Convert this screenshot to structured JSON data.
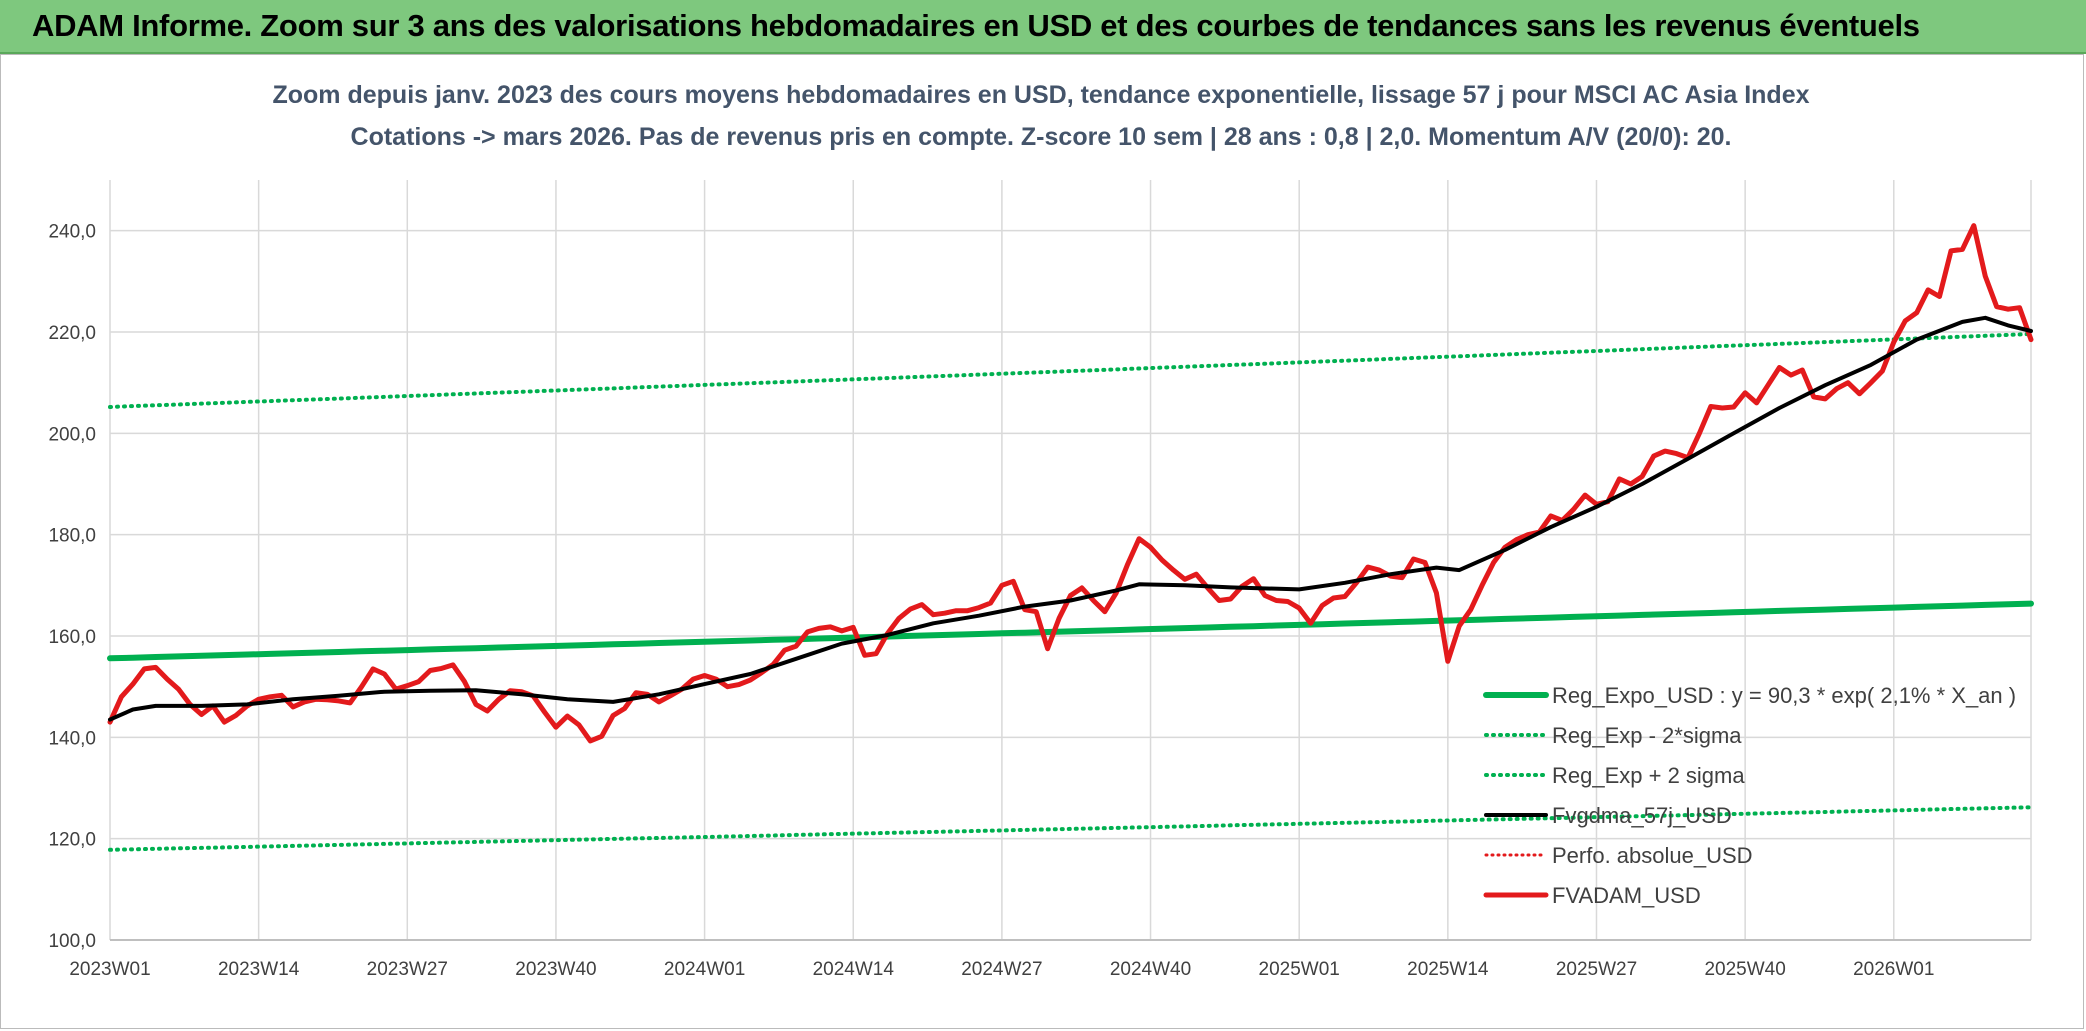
{
  "banner": {
    "title": "ADAM Informe. Zoom sur 3 ans des valorisations hebdomadaires en USD et des courbes de tendances sans les revenus éventuels"
  },
  "colors": {
    "banner_bg": "#7ec87e",
    "trend": "#00b050",
    "smooth": "#000000",
    "price": "#e31a1c",
    "grid": "#d9d9d9"
  },
  "chart_data": {
    "type": "line",
    "title": "Zoom depuis janv. 2023 des cours moyens hebdomadaires en USD, tendance exponentielle, lissage 57 j pour MSCI AC Asia Index",
    "subtitle": "Cotations -> mars 2026. Pas de revenus pris en compte. Z-score 10 sem | 28 ans : 0,8 | 2,0. Momentum A/V (20/0): 20.",
    "xlabel": "",
    "ylabel": "",
    "ylim": [
      100,
      250
    ],
    "y_ticks": [
      "100,0",
      "120,0",
      "140,0",
      "160,0",
      "180,0",
      "200,0",
      "220,0",
      "240,0"
    ],
    "x_ticks": [
      "2023W01",
      "2023W14",
      "2023W27",
      "2023W40",
      "2024W01",
      "2024W14",
      "2024W27",
      "2024W40",
      "2025W01",
      "2025W14",
      "2025W27",
      "2025W40",
      "2026W01"
    ],
    "x_range_weeks": [
      0,
      168
    ],
    "grid": true,
    "legend_position": "bottom-right",
    "series": [
      {
        "name": "Reg_Expo_USD : y = 90,3 * exp( 2,1% *  X_an )",
        "style": "thick-solid",
        "color": "#00b050",
        "start": 155.6,
        "end": 166.4
      },
      {
        "name": "Reg_Exp - 2*sigma",
        "style": "dotted",
        "color": "#00b050",
        "start": 117.8,
        "end": 126.2
      },
      {
        "name": "Reg_Exp + 2 sigma",
        "style": "dotted",
        "color": "#00b050",
        "start": 205.2,
        "end": 219.6
      },
      {
        "name": "Fvgdma_57j_USD",
        "style": "solid",
        "color": "#000000",
        "points": [
          [
            0,
            143.5
          ],
          [
            2,
            145.5
          ],
          [
            4,
            146.2
          ],
          [
            8,
            146.2
          ],
          [
            12,
            146.5
          ],
          [
            16,
            147.5
          ],
          [
            20,
            148.2
          ],
          [
            24,
            149.0
          ],
          [
            28,
            149.2
          ],
          [
            32,
            149.3
          ],
          [
            36,
            148.5
          ],
          [
            40,
            147.5
          ],
          [
            44,
            147.0
          ],
          [
            48,
            148.5
          ],
          [
            52,
            150.5
          ],
          [
            56,
            152.5
          ],
          [
            60,
            155.5
          ],
          [
            64,
            158.5
          ],
          [
            68,
            160.2
          ],
          [
            72,
            162.5
          ],
          [
            76,
            164.0
          ],
          [
            80,
            165.8
          ],
          [
            84,
            167.0
          ],
          [
            88,
            169.0
          ],
          [
            90,
            170.2
          ],
          [
            94,
            170.0
          ],
          [
            98,
            169.6
          ],
          [
            104,
            169.2
          ],
          [
            108,
            170.5
          ],
          [
            112,
            172.2
          ],
          [
            116,
            173.5
          ],
          [
            118,
            173.0
          ],
          [
            122,
            177.0
          ],
          [
            126,
            181.5
          ],
          [
            130,
            185.5
          ],
          [
            134,
            190.0
          ],
          [
            138,
            195.0
          ],
          [
            142,
            200.0
          ],
          [
            146,
            205.0
          ],
          [
            150,
            209.5
          ],
          [
            154,
            213.5
          ],
          [
            158,
            218.5
          ],
          [
            162,
            222.0
          ],
          [
            164,
            222.8
          ],
          [
            166,
            221.3
          ],
          [
            168,
            220.2
          ]
        ]
      },
      {
        "name": "Perfo. absolue_USD",
        "style": "dotted",
        "color": "#e31a1c",
        "points": []
      },
      {
        "name": "FVADAM_USD",
        "style": "thick-solid",
        "color": "#e31a1c",
        "points": [
          [
            0,
            143.0
          ],
          [
            1,
            148.0
          ],
          [
            2,
            150.5
          ],
          [
            3,
            153.5
          ],
          [
            4,
            153.8
          ],
          [
            5,
            151.5
          ],
          [
            6,
            149.5
          ],
          [
            7,
            146.5
          ],
          [
            8,
            144.5
          ],
          [
            9,
            146.2
          ],
          [
            10,
            143.0
          ],
          [
            11,
            144.3
          ],
          [
            12,
            146.2
          ],
          [
            13,
            147.5
          ],
          [
            14,
            148.0
          ],
          [
            15,
            148.3
          ],
          [
            16,
            146.0
          ],
          [
            17,
            147.0
          ],
          [
            18,
            147.5
          ],
          [
            19,
            147.4
          ],
          [
            20,
            147.2
          ],
          [
            21,
            146.8
          ],
          [
            22,
            150.0
          ],
          [
            23,
            153.5
          ],
          [
            24,
            152.5
          ],
          [
            25,
            149.5
          ],
          [
            26,
            150.2
          ],
          [
            27,
            151.0
          ],
          [
            28,
            153.2
          ],
          [
            29,
            153.6
          ],
          [
            30,
            154.3
          ],
          [
            31,
            151.0
          ],
          [
            32,
            146.5
          ],
          [
            33,
            145.2
          ],
          [
            34,
            147.5
          ],
          [
            35,
            149.2
          ],
          [
            36,
            149.0
          ],
          [
            37,
            148.2
          ],
          [
            38,
            145.0
          ],
          [
            39,
            142.0
          ],
          [
            40,
            144.2
          ],
          [
            41,
            142.5
          ],
          [
            42,
            139.3
          ],
          [
            43,
            140.2
          ],
          [
            44,
            144.3
          ],
          [
            45,
            145.7
          ],
          [
            46,
            148.8
          ],
          [
            47,
            148.5
          ],
          [
            48,
            147.0
          ],
          [
            49,
            148.2
          ],
          [
            50,
            149.5
          ],
          [
            51,
            151.5
          ],
          [
            52,
            152.2
          ],
          [
            53,
            151.5
          ],
          [
            54,
            150.0
          ],
          [
            55,
            150.4
          ],
          [
            56,
            151.3
          ],
          [
            57,
            152.8
          ],
          [
            58,
            154.4
          ],
          [
            59,
            157.2
          ],
          [
            60,
            158.0
          ],
          [
            61,
            160.8
          ],
          [
            62,
            161.5
          ],
          [
            63,
            161.8
          ],
          [
            64,
            161.0
          ],
          [
            65,
            161.7
          ],
          [
            66,
            156.2
          ],
          [
            67,
            156.5
          ],
          [
            68,
            160.5
          ],
          [
            69,
            163.5
          ],
          [
            70,
            165.3
          ],
          [
            71,
            166.2
          ],
          [
            72,
            164.2
          ],
          [
            73,
            164.5
          ],
          [
            74,
            165.0
          ],
          [
            75,
            165.0
          ],
          [
            76,
            165.6
          ],
          [
            77,
            166.5
          ],
          [
            78,
            170.0
          ],
          [
            79,
            170.8
          ],
          [
            80,
            165.2
          ],
          [
            81,
            164.8
          ],
          [
            82,
            157.5
          ],
          [
            83,
            163.5
          ],
          [
            84,
            168.0
          ],
          [
            85,
            169.5
          ],
          [
            86,
            167.0
          ],
          [
            87,
            164.8
          ],
          [
            88,
            168.5
          ],
          [
            89,
            174.2
          ],
          [
            90,
            179.2
          ],
          [
            91,
            177.5
          ],
          [
            92,
            175.0
          ],
          [
            93,
            173.0
          ],
          [
            94,
            171.2
          ],
          [
            95,
            172.2
          ],
          [
            96,
            169.5
          ],
          [
            97,
            167.0
          ],
          [
            98,
            167.3
          ],
          [
            99,
            169.8
          ],
          [
            100,
            171.3
          ],
          [
            101,
            168.0
          ],
          [
            102,
            167.0
          ],
          [
            103,
            166.8
          ],
          [
            104,
            165.5
          ],
          [
            105,
            162.5
          ],
          [
            106,
            166.0
          ],
          [
            107,
            167.5
          ],
          [
            108,
            167.8
          ],
          [
            109,
            170.5
          ],
          [
            110,
            173.6
          ],
          [
            111,
            173.0
          ],
          [
            112,
            171.8
          ],
          [
            113,
            171.5
          ],
          [
            114,
            175.2
          ],
          [
            115,
            174.5
          ],
          [
            116,
            168.5
          ],
          [
            117,
            155.0
          ],
          [
            118,
            162.0
          ],
          [
            119,
            165.2
          ],
          [
            120,
            170.0
          ],
          [
            121,
            174.5
          ],
          [
            122,
            177.5
          ],
          [
            123,
            179.0
          ],
          [
            124,
            180.0
          ],
          [
            125,
            180.5
          ],
          [
            126,
            183.7
          ],
          [
            127,
            182.8
          ],
          [
            128,
            185.0
          ],
          [
            129,
            187.8
          ],
          [
            130,
            186.0
          ],
          [
            131,
            186.5
          ],
          [
            132,
            191.0
          ],
          [
            133,
            190.0
          ],
          [
            134,
            191.5
          ],
          [
            135,
            195.5
          ],
          [
            136,
            196.5
          ],
          [
            137,
            196.0
          ],
          [
            138,
            195.2
          ],
          [
            139,
            200.0
          ],
          [
            140,
            205.3
          ],
          [
            141,
            205.0
          ],
          [
            142,
            205.2
          ],
          [
            143,
            208.0
          ],
          [
            144,
            206.0
          ],
          [
            145,
            209.5
          ],
          [
            146,
            213.0
          ],
          [
            147,
            211.5
          ],
          [
            148,
            212.5
          ],
          [
            149,
            207.2
          ],
          [
            150,
            206.8
          ],
          [
            151,
            208.8
          ],
          [
            152,
            210.0
          ],
          [
            153,
            207.8
          ],
          [
            154,
            210.0
          ],
          [
            155,
            212.3
          ],
          [
            156,
            218.0
          ],
          [
            157,
            222.2
          ],
          [
            158,
            223.8
          ],
          [
            159,
            228.3
          ],
          [
            160,
            227.0
          ],
          [
            161,
            236.0
          ],
          [
            162,
            236.3
          ],
          [
            163,
            241.0
          ],
          [
            164,
            231.0
          ],
          [
            165,
            225.0
          ],
          [
            166,
            224.5
          ],
          [
            167,
            224.8
          ],
          [
            168,
            218.5
          ]
        ]
      }
    ]
  }
}
